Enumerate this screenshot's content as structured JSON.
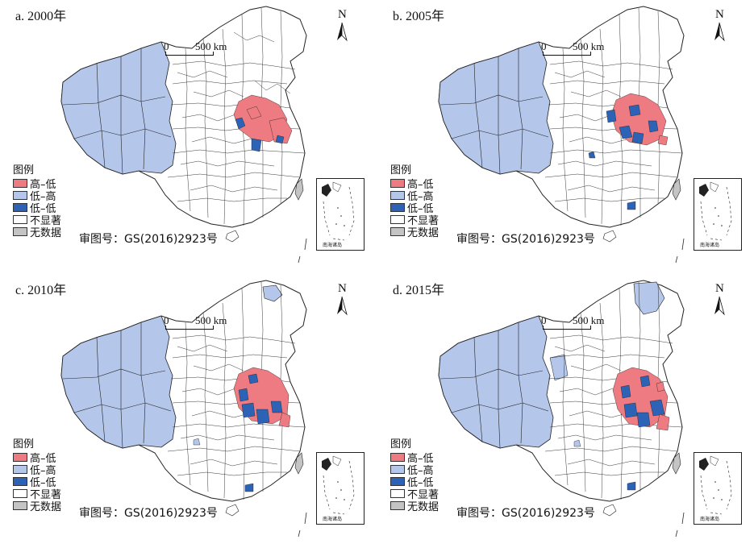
{
  "colors": {
    "high_low": "#ee7b82",
    "low_high": "#b4c6ea",
    "low_low": "#2c63b7",
    "not_significant": "#ffffff",
    "no_data": "#c4c4c4",
    "boundary": "#222222"
  },
  "icons": {
    "north_arrow": "north-arrow-icon",
    "inset": "south-china-sea-inset"
  },
  "panels": [
    {
      "title": "a. 2000年",
      "scale_zero": "0",
      "scale_text": "500 km",
      "north_label": "N",
      "legend_title": "图例",
      "legend": [
        "高–低",
        "低–高",
        "低–低",
        "不显著",
        "无数据"
      ],
      "review_number": "审图号：GS(2016)2923号",
      "inset_label": "南海诸岛"
    },
    {
      "title": "b. 2005年",
      "scale_zero": "0",
      "scale_text": "500 km",
      "north_label": "N",
      "legend_title": "图例",
      "legend": [
        "高–低",
        "低–高",
        "低–低",
        "不显著",
        "无数据"
      ],
      "review_number": "审图号：GS(2016)2923号",
      "inset_label": "南海诸岛"
    },
    {
      "title": "c. 2010年",
      "scale_zero": "0",
      "scale_text": "500 km",
      "north_label": "N",
      "legend_title": "图例",
      "legend": [
        "高–低",
        "低–高",
        "低–低",
        "不显著",
        "无数据"
      ],
      "review_number": "审图号：GS(2016)2923号",
      "inset_label": "南海诸岛"
    },
    {
      "title": "d. 2015年",
      "scale_zero": "0",
      "scale_text": "500 km",
      "north_label": "N",
      "legend_title": "图例",
      "legend": [
        "高–低",
        "低–高",
        "低–低",
        "不显著",
        "无数据"
      ],
      "review_number": "审图号：GS(2016)2923号",
      "inset_label": "南海诸岛"
    }
  ]
}
